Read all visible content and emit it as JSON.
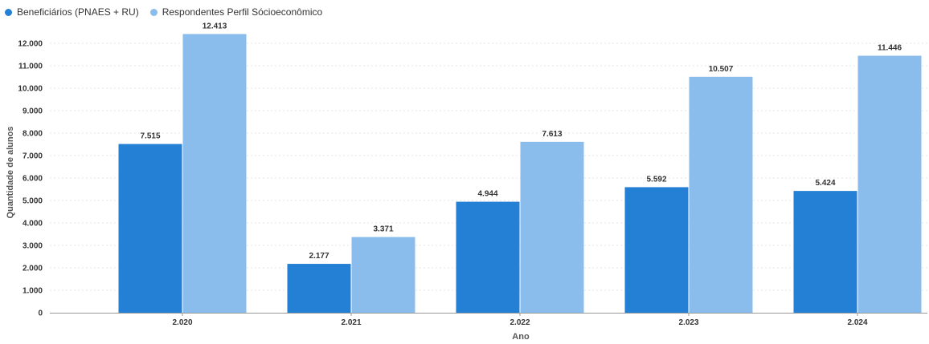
{
  "chart_data": {
    "type": "bar",
    "title": "",
    "xlabel": "Ano",
    "ylabel": "Quantidade de alunos",
    "categories": [
      "2.020",
      "2.021",
      "2.022",
      "2.023",
      "2.024"
    ],
    "ylim": [
      0,
      12500
    ],
    "yticks": [
      0,
      1000,
      2000,
      3000,
      4000,
      5000,
      6000,
      7000,
      8000,
      9000,
      10000,
      11000,
      12000
    ],
    "ytick_labels": [
      "0",
      "1.000",
      "2.000",
      "3.000",
      "4.000",
      "5.000",
      "6.000",
      "7.000",
      "8.000",
      "9.000",
      "10.000",
      "11.000",
      "12.000"
    ],
    "legend_position": "top-left",
    "series": [
      {
        "name": "Beneficiários (PNAES + RU)",
        "color": "#2480d4",
        "values": [
          7515,
          2177,
          4944,
          5592,
          5424
        ],
        "labels": [
          "7.515",
          "2.177",
          "4.944",
          "5.592",
          "5.424"
        ]
      },
      {
        "name": "Respondentes Perfil Sócioeconômico",
        "color": "#8abcec",
        "values": [
          12413,
          3371,
          7613,
          10507,
          11446
        ],
        "labels": [
          "12.413",
          "3.371",
          "7.613",
          "10.507",
          "11.446"
        ]
      }
    ]
  }
}
